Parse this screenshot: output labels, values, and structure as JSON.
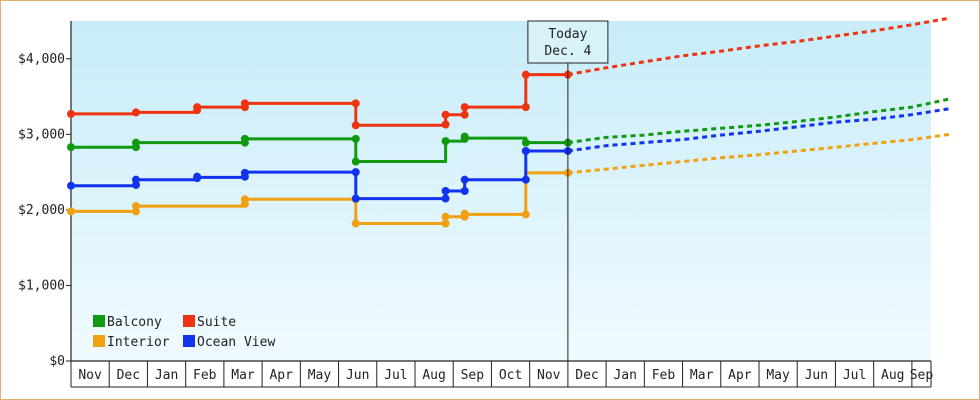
{
  "chart_data": {
    "type": "line",
    "title": "",
    "xlabel": "",
    "ylabel": "",
    "ylim": [
      0,
      4500
    ],
    "yticks": [
      0,
      1000,
      2000,
      3000,
      4000
    ],
    "ytick_labels": [
      "$0",
      "$1,000",
      "$2,000",
      "$3,000",
      "$4,000"
    ],
    "xtick_labels": [
      "Nov",
      "Dec",
      "Jan",
      "Feb",
      "Mar",
      "Apr",
      "May",
      "Jun",
      "Jul",
      "Aug",
      "Sep",
      "Oct",
      "Nov",
      "Dec",
      "Jan",
      "Feb",
      "Mar",
      "Apr",
      "May",
      "Jun",
      "Jul",
      "Aug",
      "Sep"
    ],
    "x_unit": "month index (0 = first Nov)",
    "today": {
      "x": 13.0,
      "label_line1": "Today",
      "label_line2": "Dec. 4"
    },
    "legend": {
      "position": "bottom-left"
    },
    "grid": false,
    "background": {
      "top": "#c8ecf8",
      "bottom": "#f0fbff"
    },
    "series": [
      {
        "name": "Balcony",
        "color": "#119911",
        "history": [
          [
            0.0,
            2830
          ],
          [
            1.7,
            2830
          ],
          [
            1.7,
            2890
          ],
          [
            4.55,
            2890
          ],
          [
            4.55,
            2940
          ],
          [
            7.45,
            2940
          ],
          [
            7.45,
            2640
          ],
          [
            9.8,
            2640
          ],
          [
            9.8,
            2910
          ],
          [
            10.3,
            2910
          ],
          [
            10.3,
            2950
          ],
          [
            11.9,
            2950
          ],
          [
            11.9,
            2890
          ],
          [
            13.0,
            2890
          ]
        ],
        "markers": [
          [
            0.0,
            2830
          ],
          [
            1.7,
            2830
          ],
          [
            1.7,
            2890
          ],
          [
            4.55,
            2890
          ],
          [
            4.55,
            2940
          ],
          [
            7.45,
            2940
          ],
          [
            7.45,
            2640
          ],
          [
            9.8,
            2910
          ],
          [
            10.3,
            2940
          ],
          [
            10.3,
            2970
          ],
          [
            11.9,
            2890
          ],
          [
            13.0,
            2890
          ]
        ],
        "forecast": [
          [
            13.0,
            2890
          ],
          [
            14.0,
            2960
          ],
          [
            15.0,
            2990
          ],
          [
            16.0,
            3040
          ],
          [
            17.0,
            3080
          ],
          [
            18.0,
            3120
          ],
          [
            19.0,
            3170
          ],
          [
            20.0,
            3230
          ],
          [
            21.0,
            3300
          ],
          [
            22.0,
            3360
          ],
          [
            23.0,
            3470
          ]
        ]
      },
      {
        "name": "Suite",
        "color": "#ee3311",
        "history": [
          [
            0.0,
            3270
          ],
          [
            1.7,
            3270
          ],
          [
            1.7,
            3290
          ],
          [
            3.3,
            3290
          ],
          [
            3.3,
            3360
          ],
          [
            4.55,
            3360
          ],
          [
            4.55,
            3410
          ],
          [
            7.45,
            3410
          ],
          [
            7.45,
            3120
          ],
          [
            9.8,
            3120
          ],
          [
            9.8,
            3260
          ],
          [
            10.3,
            3260
          ],
          [
            10.3,
            3360
          ],
          [
            11.9,
            3360
          ],
          [
            11.9,
            3790
          ],
          [
            13.0,
            3790
          ]
        ],
        "markers": [
          [
            0.0,
            3270
          ],
          [
            1.7,
            3290
          ],
          [
            3.3,
            3320
          ],
          [
            3.3,
            3360
          ],
          [
            4.55,
            3360
          ],
          [
            4.55,
            3410
          ],
          [
            7.45,
            3410
          ],
          [
            7.45,
            3120
          ],
          [
            9.8,
            3130
          ],
          [
            9.8,
            3260
          ],
          [
            10.3,
            3260
          ],
          [
            10.3,
            3360
          ],
          [
            11.9,
            3360
          ],
          [
            11.9,
            3790
          ],
          [
            13.0,
            3790
          ]
        ],
        "forecast": [
          [
            13.0,
            3790
          ],
          [
            14.0,
            3880
          ],
          [
            15.0,
            3960
          ],
          [
            16.0,
            4040
          ],
          [
            17.0,
            4100
          ],
          [
            18.0,
            4170
          ],
          [
            19.0,
            4230
          ],
          [
            20.0,
            4300
          ],
          [
            21.0,
            4370
          ],
          [
            22.0,
            4450
          ],
          [
            23.0,
            4540
          ]
        ]
      },
      {
        "name": "Interior",
        "color": "#f0a010",
        "history": [
          [
            0.0,
            1980
          ],
          [
            1.7,
            1980
          ],
          [
            1.7,
            2050
          ],
          [
            4.55,
            2050
          ],
          [
            4.55,
            2140
          ],
          [
            7.45,
            2140
          ],
          [
            7.45,
            1820
          ],
          [
            9.8,
            1820
          ],
          [
            9.8,
            1910
          ],
          [
            10.3,
            1910
          ],
          [
            10.3,
            1940
          ],
          [
            11.9,
            1940
          ],
          [
            11.9,
            2490
          ],
          [
            13.0,
            2490
          ]
        ],
        "markers": [
          [
            0.0,
            1980
          ],
          [
            1.7,
            1980
          ],
          [
            1.7,
            2050
          ],
          [
            4.55,
            2080
          ],
          [
            4.55,
            2140
          ],
          [
            7.45,
            2140
          ],
          [
            7.45,
            1820
          ],
          [
            9.8,
            1820
          ],
          [
            9.8,
            1910
          ],
          [
            10.3,
            1910
          ],
          [
            10.3,
            1950
          ],
          [
            11.9,
            1940
          ],
          [
            13.0,
            2490
          ]
        ],
        "forecast": [
          [
            13.0,
            2490
          ],
          [
            14.0,
            2540
          ],
          [
            15.0,
            2590
          ],
          [
            16.0,
            2640
          ],
          [
            17.0,
            2690
          ],
          [
            18.0,
            2730
          ],
          [
            19.0,
            2780
          ],
          [
            20.0,
            2830
          ],
          [
            21.0,
            2880
          ],
          [
            22.0,
            2930
          ],
          [
            23.0,
            3000
          ]
        ]
      },
      {
        "name": "Ocean View",
        "color": "#1133ee",
        "history": [
          [
            0.0,
            2320
          ],
          [
            1.7,
            2320
          ],
          [
            1.7,
            2400
          ],
          [
            3.3,
            2400
          ],
          [
            3.3,
            2430
          ],
          [
            4.55,
            2430
          ],
          [
            4.55,
            2500
          ],
          [
            7.45,
            2500
          ],
          [
            7.45,
            2150
          ],
          [
            9.8,
            2150
          ],
          [
            9.8,
            2250
          ],
          [
            10.3,
            2250
          ],
          [
            10.3,
            2400
          ],
          [
            11.9,
            2400
          ],
          [
            11.9,
            2780
          ],
          [
            13.0,
            2780
          ]
        ],
        "markers": [
          [
            0.0,
            2320
          ],
          [
            1.7,
            2330
          ],
          [
            1.7,
            2400
          ],
          [
            3.3,
            2420
          ],
          [
            3.3,
            2440
          ],
          [
            4.55,
            2440
          ],
          [
            4.55,
            2490
          ],
          [
            7.45,
            2500
          ],
          [
            7.45,
            2150
          ],
          [
            9.8,
            2150
          ],
          [
            9.8,
            2250
          ],
          [
            10.3,
            2250
          ],
          [
            10.3,
            2400
          ],
          [
            11.9,
            2400
          ],
          [
            11.9,
            2780
          ],
          [
            13.0,
            2780
          ]
        ],
        "forecast": [
          [
            13.0,
            2780
          ],
          [
            14.0,
            2850
          ],
          [
            15.0,
            2890
          ],
          [
            16.0,
            2930
          ],
          [
            17.0,
            2990
          ],
          [
            18.0,
            3040
          ],
          [
            19.0,
            3100
          ],
          [
            20.0,
            3160
          ],
          [
            21.0,
            3200
          ],
          [
            22.0,
            3260
          ],
          [
            23.0,
            3340
          ]
        ]
      }
    ]
  }
}
